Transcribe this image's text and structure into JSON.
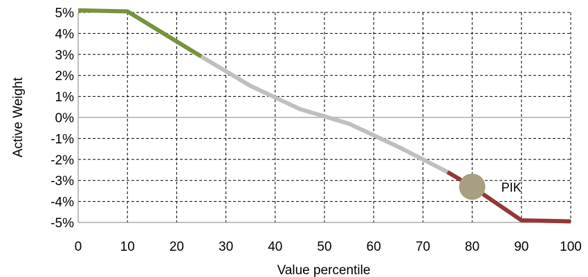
{
  "chart_data": {
    "type": "line",
    "title": "",
    "xlabel": "Value percentile",
    "ylabel": "Active Weight",
    "xlim": [
      0,
      100
    ],
    "ylim": [
      -5,
      5
    ],
    "x_ticks": [
      0,
      10,
      20,
      30,
      40,
      50,
      60,
      70,
      80,
      90,
      100
    ],
    "x_tick_labels": [
      "0",
      "10",
      "20",
      "30",
      "40",
      "50",
      "60",
      "70",
      "80",
      "90",
      "100"
    ],
    "y_ticks": [
      5,
      4,
      3,
      2,
      1,
      0,
      -1,
      -2,
      -3,
      -4,
      -5
    ],
    "y_tick_labels": [
      "5%",
      "4%",
      "3%",
      "2%",
      "1%",
      "0%",
      "-1%",
      "-2%",
      "-3%",
      "-4%",
      "-5%"
    ],
    "grid": true,
    "legend": "none",
    "series": [
      {
        "color": "#77933C",
        "x": [
          0,
          10,
          25
        ],
        "y": [
          5.1,
          5.05,
          2.9
        ]
      },
      {
        "color": "#BFBFBF",
        "x": [
          25,
          35,
          45,
          55,
          65,
          75
        ],
        "y": [
          2.9,
          1.5,
          0.4,
          -0.3,
          -1.4,
          -2.6
        ]
      },
      {
        "color": "#953735",
        "x": [
          75,
          80,
          90,
          100
        ],
        "y": [
          -2.6,
          -3.3,
          -4.9,
          -4.95
        ]
      }
    ],
    "annotations": [
      {
        "label": "PIK",
        "x": 80,
        "y": -3.3,
        "marker_color": "#A89F80"
      }
    ],
    "zero_line_color": "#C0C0C0"
  }
}
